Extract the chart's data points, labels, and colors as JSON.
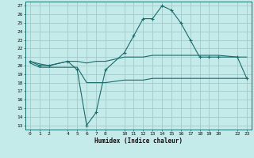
{
  "xlabel": "Humidex (Indice chaleur)",
  "bg_color": "#c5eaea",
  "grid_color": "#a0cccc",
  "line_color": "#1a6b6b",
  "xlim": [
    -0.5,
    23.5
  ],
  "ylim": [
    12.5,
    27.5
  ],
  "yticks": [
    13,
    14,
    15,
    16,
    17,
    18,
    19,
    20,
    21,
    22,
    23,
    24,
    25,
    26,
    27
  ],
  "xticks": [
    0,
    1,
    2,
    4,
    5,
    6,
    7,
    8,
    10,
    11,
    12,
    13,
    14,
    15,
    16,
    17,
    18,
    19,
    20,
    22,
    23
  ],
  "xtick_labels": [
    "0",
    "1",
    "2",
    "4",
    "5",
    "6",
    "7",
    "8",
    "10",
    "11",
    "12",
    "13",
    "14",
    "15",
    "16",
    "17",
    "18",
    "19",
    "20",
    "22",
    "23"
  ],
  "line1_x": [
    0,
    1,
    2,
    4,
    5,
    6,
    7,
    8,
    10,
    11,
    12,
    13,
    14,
    15,
    16,
    17,
    18,
    19,
    20,
    22,
    23
  ],
  "line1_y": [
    20.5,
    20.0,
    20.0,
    20.5,
    19.5,
    13.0,
    14.5,
    19.5,
    21.5,
    23.5,
    25.5,
    25.5,
    27.0,
    26.5,
    25.0,
    23.0,
    21.0,
    21.0,
    21.0,
    21.0,
    18.5
  ],
  "line2_x": [
    0,
    1,
    2,
    4,
    5,
    6,
    7,
    8,
    10,
    11,
    12,
    13,
    14,
    15,
    16,
    17,
    18,
    19,
    20,
    22,
    23
  ],
  "line2_y": [
    20.5,
    20.2,
    20.0,
    20.5,
    20.5,
    20.3,
    20.5,
    20.5,
    21.0,
    21.0,
    21.0,
    21.2,
    21.2,
    21.2,
    21.2,
    21.2,
    21.2,
    21.2,
    21.2,
    21.0,
    21.0
  ],
  "line3_x": [
    0,
    1,
    2,
    4,
    5,
    6,
    7,
    8,
    10,
    11,
    12,
    13,
    14,
    15,
    16,
    17,
    18,
    19,
    20,
    22,
    23
  ],
  "line3_y": [
    20.3,
    19.8,
    19.8,
    19.8,
    19.8,
    18.0,
    18.0,
    18.0,
    18.3,
    18.3,
    18.3,
    18.5,
    18.5,
    18.5,
    18.5,
    18.5,
    18.5,
    18.5,
    18.5,
    18.5,
    18.5
  ]
}
